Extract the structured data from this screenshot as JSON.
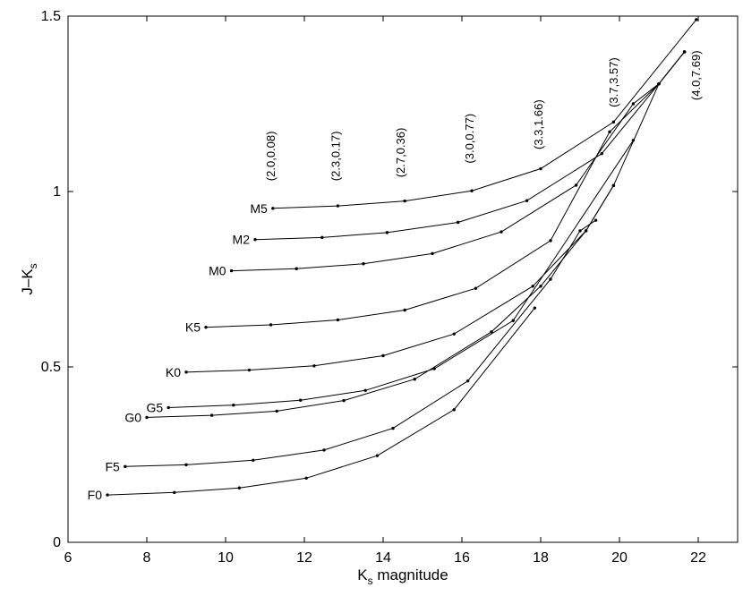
{
  "chart_data": {
    "type": "line",
    "xlabel_main": "K",
    "xlabel_sub": "s",
    "xlabel_rest": " magnitude",
    "ylabel_main": "J–K",
    "ylabel_sub": "s",
    "xlim": [
      6,
      23
    ],
    "ylim": [
      0,
      1.5
    ],
    "xticks": [
      {
        "value": 6,
        "label": "6"
      },
      {
        "value": 8,
        "label": "8"
      },
      {
        "value": 10,
        "label": "10"
      },
      {
        "value": 12,
        "label": "12"
      },
      {
        "value": 14,
        "label": "14"
      },
      {
        "value": 16,
        "label": "16"
      },
      {
        "value": 18,
        "label": "18"
      },
      {
        "value": 20,
        "label": "20"
      },
      {
        "value": 22,
        "label": "22"
      }
    ],
    "yticks": [
      {
        "value": 0,
        "label": "0"
      },
      {
        "value": 0.5,
        "label": "0.5"
      },
      {
        "value": 1,
        "label": "1"
      },
      {
        "value": 1.5,
        "label": "1.5"
      }
    ],
    "grid": false,
    "series": [
      {
        "name": "F0",
        "points": [
          [
            7.0,
            0.135
          ],
          [
            8.7,
            0.142
          ],
          [
            10.35,
            0.155
          ],
          [
            12.05,
            0.183
          ],
          [
            13.85,
            0.247
          ],
          [
            15.8,
            0.378
          ],
          [
            17.85,
            0.668
          ]
        ]
      },
      {
        "name": "F5",
        "points": [
          [
            7.45,
            0.216
          ],
          [
            9.0,
            0.221
          ],
          [
            10.7,
            0.234
          ],
          [
            12.5,
            0.263
          ],
          [
            14.25,
            0.325
          ],
          [
            16.15,
            0.46
          ],
          [
            18.25,
            0.75
          ],
          [
            19.0,
            0.888
          ],
          [
            19.4,
            0.918
          ]
        ]
      },
      {
        "name": "G0",
        "points": [
          [
            8.0,
            0.356
          ],
          [
            9.65,
            0.362
          ],
          [
            11.3,
            0.374
          ],
          [
            13.0,
            0.404
          ],
          [
            14.8,
            0.465
          ],
          [
            16.75,
            0.6
          ],
          [
            18.0,
            0.73
          ],
          [
            19.15,
            0.888
          ],
          [
            19.85,
            1.017
          ]
        ]
      },
      {
        "name": "G5",
        "points": [
          [
            8.55,
            0.384
          ],
          [
            10.2,
            0.391
          ],
          [
            11.9,
            0.405
          ],
          [
            13.55,
            0.433
          ],
          [
            15.3,
            0.495
          ],
          [
            17.3,
            0.632
          ],
          [
            20.35,
            1.146
          ]
        ]
      },
      {
        "name": "K0",
        "points": [
          [
            9.0,
            0.485
          ],
          [
            10.6,
            0.491
          ],
          [
            12.25,
            0.503
          ],
          [
            14.0,
            0.532
          ],
          [
            15.8,
            0.594
          ],
          [
            17.8,
            0.73
          ],
          [
            19.15,
            0.888
          ],
          [
            19.85,
            1.017
          ],
          [
            21.0,
            1.307
          ],
          [
            21.65,
            1.398
          ]
        ]
      },
      {
        "name": "K5",
        "points": [
          [
            9.5,
            0.613
          ],
          [
            11.15,
            0.62
          ],
          [
            12.85,
            0.634
          ],
          [
            14.55,
            0.662
          ],
          [
            16.35,
            0.724
          ],
          [
            18.25,
            0.86
          ],
          [
            19.75,
            1.17
          ],
          [
            21.0,
            1.307
          ],
          [
            21.65,
            1.398
          ]
        ]
      },
      {
        "name": "M0",
        "points": [
          [
            10.15,
            0.774
          ],
          [
            11.8,
            0.78
          ],
          [
            13.5,
            0.794
          ],
          [
            15.25,
            0.823
          ],
          [
            17.0,
            0.885
          ],
          [
            18.9,
            1.018
          ],
          [
            20.35,
            1.25
          ],
          [
            21.0,
            1.307
          ],
          [
            21.65,
            1.398
          ]
        ]
      },
      {
        "name": "M2",
        "points": [
          [
            10.75,
            0.863
          ],
          [
            12.45,
            0.869
          ],
          [
            14.1,
            0.883
          ],
          [
            15.9,
            0.912
          ],
          [
            17.65,
            0.974
          ],
          [
            19.55,
            1.108
          ],
          [
            21.0,
            1.307
          ],
          [
            21.65,
            1.398
          ]
        ]
      },
      {
        "name": "M5",
        "points": [
          [
            11.2,
            0.952
          ],
          [
            12.85,
            0.959
          ],
          [
            14.55,
            0.973
          ],
          [
            16.25,
            1.002
          ],
          [
            18.0,
            1.065
          ],
          [
            19.85,
            1.198
          ],
          [
            21.95,
            1.49
          ]
        ]
      }
    ],
    "annotations": [
      {
        "label": "(2.0,0.08)",
        "x": 11.25,
        "y": 1.03
      },
      {
        "label": "(2.3,0.17)",
        "x": 12.9,
        "y": 1.03
      },
      {
        "label": "(2.7,0.36)",
        "x": 14.55,
        "y": 1.04
      },
      {
        "label": "(3.0,0.77)",
        "x": 16.3,
        "y": 1.08
      },
      {
        "label": "(3.3,1.66)",
        "x": 18.05,
        "y": 1.12
      },
      {
        "label": "(3.7,3.57)",
        "x": 19.95,
        "y": 1.24
      },
      {
        "label": "(4.0,7.69)",
        "x": 22.05,
        "y": 1.26
      }
    ]
  }
}
